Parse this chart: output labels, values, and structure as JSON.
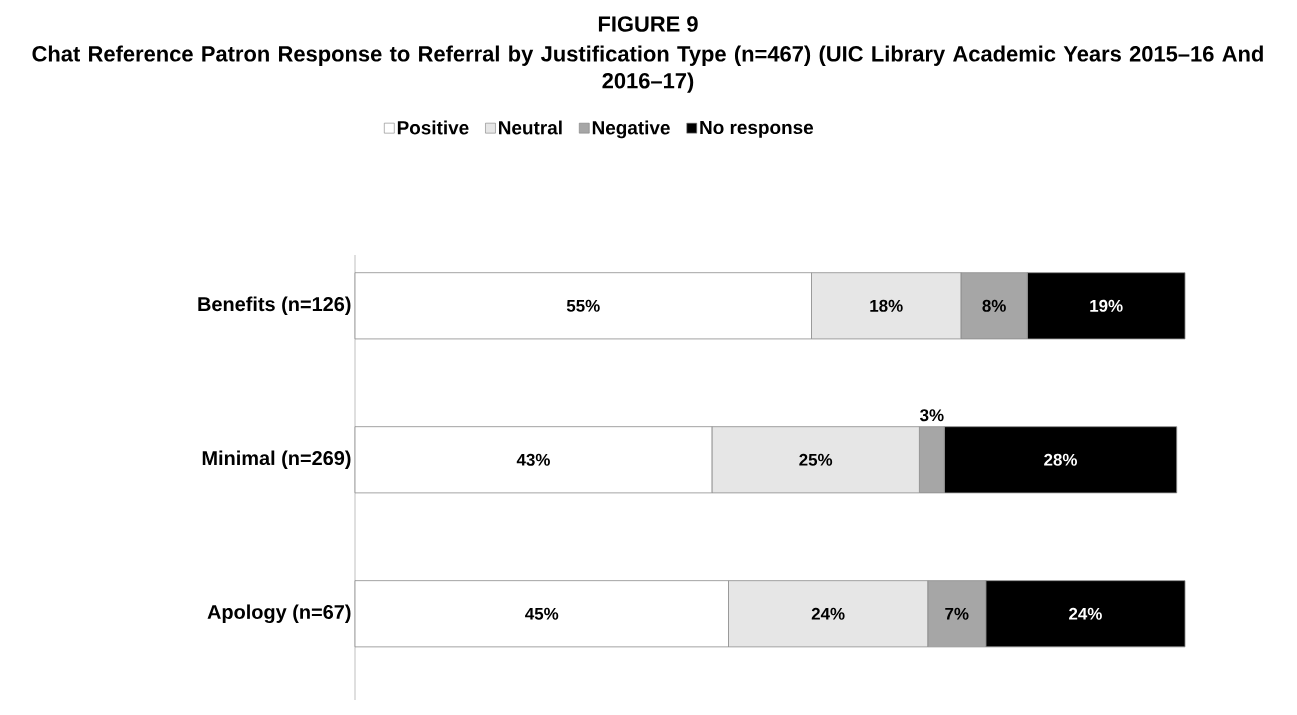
{
  "chart_data": {
    "type": "bar",
    "orientation": "horizontal",
    "stacked": true,
    "title": "FIGURE 9",
    "subtitle": "Chat Reference Patron Response to Referral by Justification Type (n=467) (UIC Library Academic Years 2015–16 And 2016–17)",
    "categories": [
      "Benefits (n=126)",
      "Minimal (n=269)",
      "Apology (n=67)"
    ],
    "series": [
      {
        "name": "Positive",
        "color": "#ffffff",
        "values": [
          55,
          43,
          45
        ],
        "value_labels": [
          "55%",
          "43%",
          "45%"
        ]
      },
      {
        "name": "Neutral",
        "color": "#e6e6e6",
        "values": [
          18,
          25,
          24
        ],
        "value_labels": [
          "18%",
          "25%",
          "24%"
        ]
      },
      {
        "name": "Negative",
        "color": "#a6a6a6",
        "values": [
          8,
          3,
          7
        ],
        "value_labels": [
          "8%",
          "3%",
          "7%"
        ]
      },
      {
        "name": "No response",
        "color": "#000000",
        "values": [
          19,
          28,
          24
        ],
        "value_labels": [
          "19%",
          "28%",
          "24%"
        ]
      }
    ],
    "xlim": [
      0,
      100
    ],
    "tick_labels": "y",
    "legend": "top"
  }
}
